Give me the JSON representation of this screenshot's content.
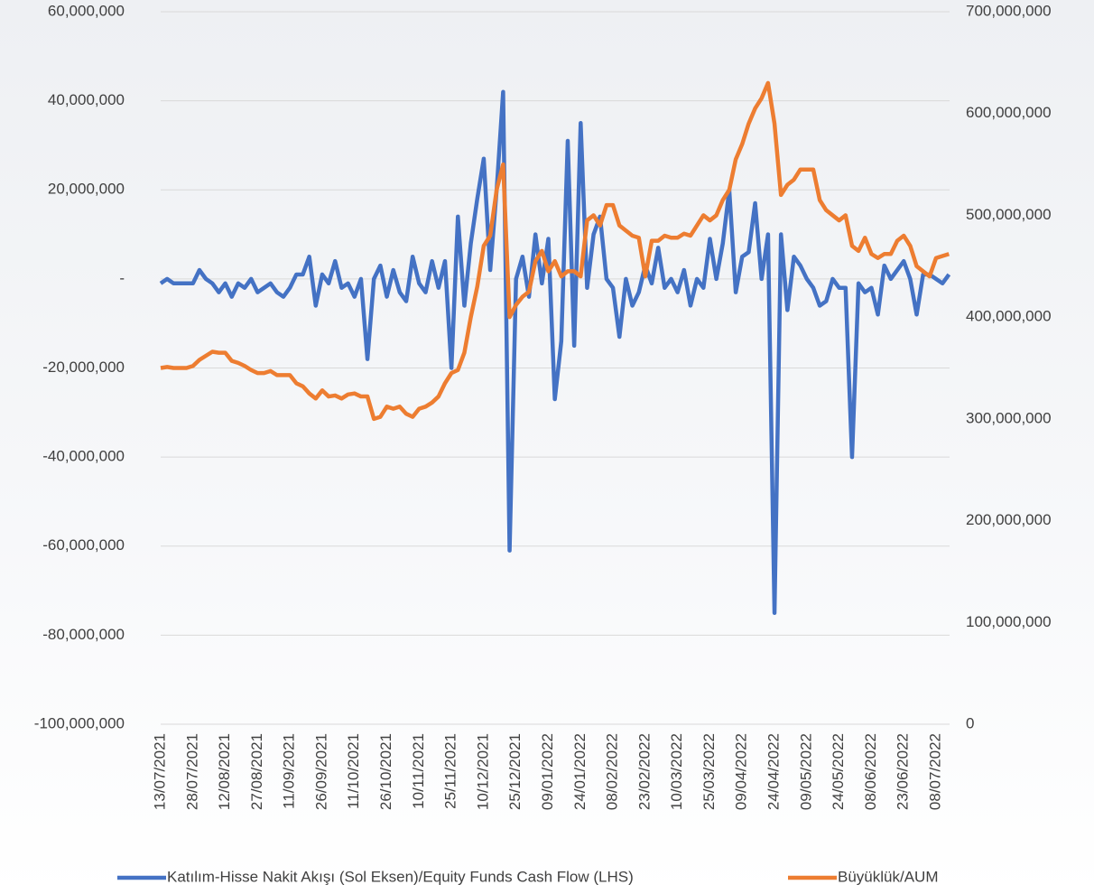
{
  "chart_data": {
    "type": "line",
    "categories": [
      "13/07/2021",
      null,
      null,
      null,
      null,
      "28/07/2021",
      null,
      null,
      null,
      null,
      "12/08/2021",
      null,
      null,
      null,
      null,
      "27/08/2021",
      null,
      null,
      null,
      null,
      "11/09/2021",
      null,
      null,
      null,
      null,
      "26/09/2021",
      null,
      null,
      null,
      null,
      "11/10/2021",
      null,
      null,
      null,
      null,
      "26/10/2021",
      null,
      null,
      null,
      null,
      "10/11/2021",
      null,
      null,
      null,
      null,
      "25/11/2021",
      null,
      null,
      null,
      null,
      "10/12/2021",
      null,
      null,
      null,
      null,
      "25/12/2021",
      null,
      null,
      null,
      null,
      "09/01/2022",
      null,
      null,
      null,
      null,
      "24/01/2022",
      null,
      null,
      null,
      null,
      "08/02/2022",
      null,
      null,
      null,
      null,
      "23/02/2022",
      null,
      null,
      null,
      null,
      "10/03/2022",
      null,
      null,
      null,
      null,
      "25/03/2022",
      null,
      null,
      null,
      null,
      "09/04/2022",
      null,
      null,
      null,
      null,
      "24/04/2022",
      null,
      null,
      null,
      null,
      "09/05/2022",
      null,
      null,
      null,
      null,
      "24/05/2022",
      null,
      null,
      null,
      null,
      "08/06/2022",
      null,
      null,
      null,
      null,
      "23/06/2022",
      null,
      null,
      null,
      null,
      "08/07/2022",
      null,
      null
    ],
    "series": [
      {
        "name": "Katılım-Hisse Nakit Akışı (Sol Eksen)/Equity Funds Cash Flow (LHS)",
        "color": "#4472c4",
        "axis": "y",
        "values": [
          -1000000,
          0,
          -1000000,
          -1000000,
          -1000000,
          -1000000,
          2000000,
          0,
          -1000000,
          -3000000,
          -1000000,
          -4000000,
          -1000000,
          -2000000,
          0,
          -3000000,
          -2000000,
          -1000000,
          -3000000,
          -4000000,
          -2000000,
          1000000,
          1000000,
          5000000,
          -6000000,
          1000000,
          -1000000,
          4000000,
          -2000000,
          -1000000,
          -4000000,
          0,
          -18000000,
          0,
          3000000,
          -4000000,
          2000000,
          -3000000,
          -5000000,
          5000000,
          -1000000,
          -3000000,
          4000000,
          -2000000,
          4000000,
          -20000000,
          14000000,
          -6000000,
          8000000,
          18000000,
          27000000,
          2000000,
          20000000,
          42000000,
          -61000000,
          0,
          5000000,
          -4000000,
          10000000,
          -1000000,
          9000000,
          -27000000,
          -14000000,
          31000000,
          -15000000,
          35000000,
          -2000000,
          10000000,
          14000000,
          0,
          -2000000,
          -13000000,
          0,
          -6000000,
          -3000000,
          3000000,
          -1000000,
          7000000,
          -2000000,
          0,
          -3000000,
          2000000,
          -6000000,
          0,
          -2000000,
          9000000,
          0,
          8000000,
          20000000,
          -3000000,
          5000000,
          6000000,
          17000000,
          0,
          10000000,
          -75000000,
          10000000,
          -7000000,
          5000000,
          3000000,
          0,
          -2000000,
          -6000000,
          -5000000,
          0,
          -2000000,
          -2000000,
          -40000000,
          -1000000,
          -3000000,
          -2000000,
          -8000000,
          3000000,
          0,
          2000000,
          4000000,
          0,
          -8000000,
          1000000,
          1000000,
          0,
          -1000000,
          1000000
        ]
      },
      {
        "name": "Büyüklük/AUM",
        "color": "#ed7d31",
        "axis": "y2",
        "values": [
          350000000,
          351000000,
          350000000,
          350000000,
          350000000,
          352000000,
          358000000,
          362000000,
          366000000,
          365000000,
          365000000,
          357000000,
          355000000,
          352000000,
          348000000,
          345000000,
          345000000,
          347000000,
          343000000,
          343000000,
          343000000,
          335000000,
          332000000,
          325000000,
          320000000,
          328000000,
          322000000,
          323000000,
          320000000,
          324000000,
          325000000,
          322000000,
          322000000,
          300000000,
          302000000,
          312000000,
          310000000,
          312000000,
          305000000,
          302000000,
          310000000,
          312000000,
          316000000,
          322000000,
          335000000,
          345000000,
          348000000,
          365000000,
          400000000,
          430000000,
          470000000,
          480000000,
          525000000,
          550000000,
          400000000,
          412000000,
          420000000,
          425000000,
          455000000,
          465000000,
          445000000,
          455000000,
          440000000,
          445000000,
          445000000,
          440000000,
          495000000,
          500000000,
          490000000,
          510000000,
          510000000,
          490000000,
          485000000,
          480000000,
          478000000,
          440000000,
          475000000,
          475000000,
          480000000,
          478000000,
          478000000,
          482000000,
          480000000,
          490000000,
          500000000,
          495000000,
          500000000,
          515000000,
          525000000,
          555000000,
          570000000,
          590000000,
          605000000,
          615000000,
          630000000,
          590000000,
          520000000,
          530000000,
          535000000,
          545000000,
          545000000,
          545000000,
          515000000,
          505000000,
          500000000,
          495000000,
          500000000,
          470000000,
          465000000,
          478000000,
          462000000,
          458000000,
          462000000,
          462000000,
          475000000,
          480000000,
          470000000,
          450000000,
          445000000,
          440000000,
          458000000,
          460000000,
          462000000
        ]
      }
    ],
    "ylim": [
      -100000000,
      60000000
    ],
    "yticks": [
      {
        "value": -100000000,
        "label": "-100,000,000"
      },
      {
        "value": -80000000,
        "label": "-80,000,000"
      },
      {
        "value": -60000000,
        "label": "-60,000,000"
      },
      {
        "value": -40000000,
        "label": "-40,000,000"
      },
      {
        "value": -20000000,
        "label": "-20,000,000"
      },
      {
        "value": 0,
        "label": "-"
      },
      {
        "value": 20000000,
        "label": "20,000,000"
      },
      {
        "value": 40000000,
        "label": "40,000,000"
      },
      {
        "value": 60000000,
        "label": "60,000,000"
      }
    ],
    "y2lim": [
      0,
      700000000
    ],
    "y2ticks": [
      0,
      {
        "value": 100000000,
        "label": "100,000,000"
      },
      {
        "value": 200000000,
        "label": "200,000,000"
      },
      {
        "value": 300000000,
        "label": "300,000,000"
      },
      {
        "value": 400000000,
        "label": "400,000,000"
      },
      {
        "value": 500000000,
        "label": "500,000,000"
      },
      {
        "value": 600000000,
        "label": "600,000,000"
      },
      {
        "value": 700000000,
        "label": "700,000,000"
      }
    ],
    "grid": true,
    "legend": "bottom"
  }
}
